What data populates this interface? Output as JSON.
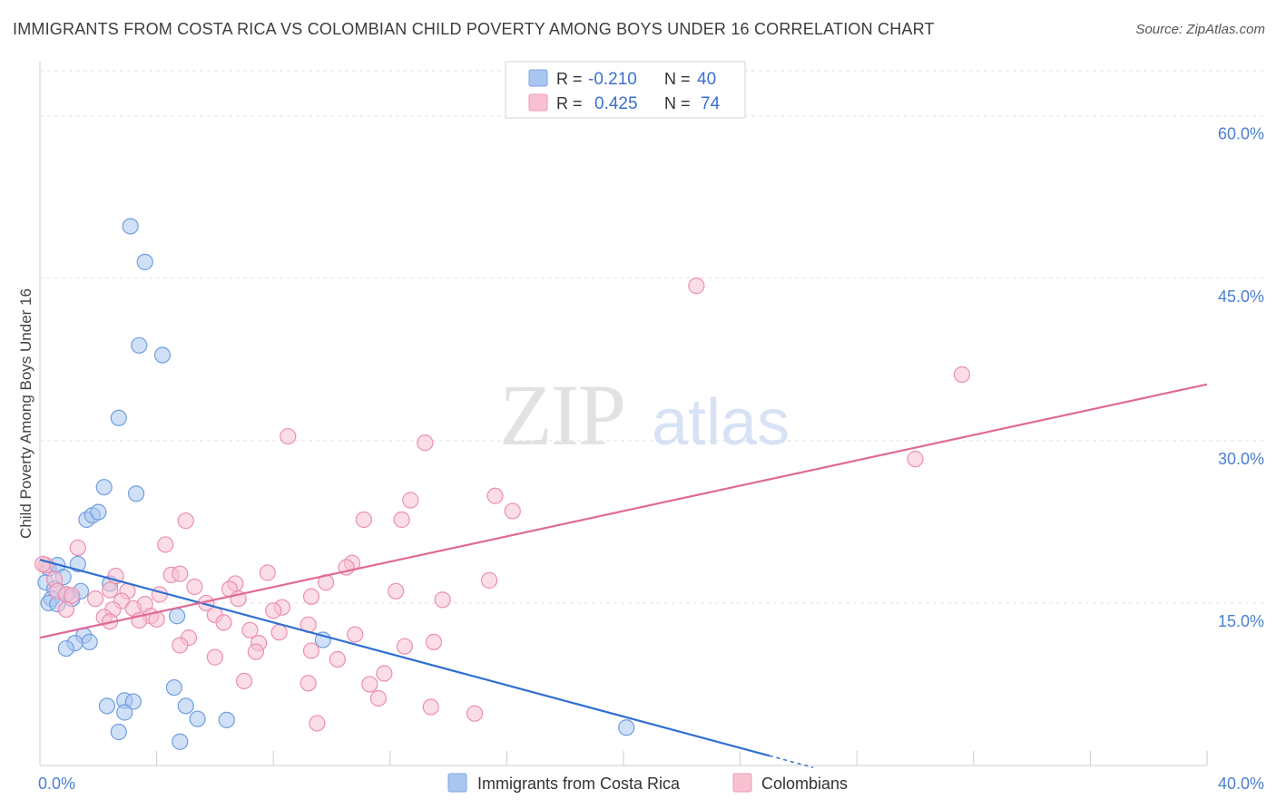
{
  "title": "IMMIGRANTS FROM COSTA RICA VS COLOMBIAN CHILD POVERTY AMONG BOYS UNDER 16 CORRELATION CHART",
  "source": "Source: ZipAtlas.com",
  "watermark": {
    "zip": "ZIP",
    "atlas": "atlas"
  },
  "legend": {
    "r_label": "R =",
    "n_label": "N =",
    "rows": [
      {
        "r": "-0.210",
        "n": "40",
        "color": "#a9c6f0",
        "stroke": "#7ea6e3"
      },
      {
        "r": "0.425",
        "n": "74",
        "color": "#f7c1d2",
        "stroke": "#ef9ab6"
      }
    ]
  },
  "chart_data": {
    "type": "scatter",
    "title": "IMMIGRANTS FROM COSTA RICA VS COLOMBIAN CHILD POVERTY AMONG BOYS UNDER 16 CORRELATION CHART",
    "xlabel": "",
    "ylabel": "Child Poverty Among Boys Under 16",
    "xlim": [
      0,
      40
    ],
    "ylim": [
      0,
      65
    ],
    "x_tick_labels": [
      {
        "value": 0,
        "label": "0.0%"
      },
      {
        "value": 40,
        "label": "40.0%"
      }
    ],
    "y_tick_labels": [
      {
        "value": 15,
        "label": "15.0%"
      },
      {
        "value": 30,
        "label": "30.0%"
      },
      {
        "value": 45,
        "label": "45.0%"
      },
      {
        "value": 60,
        "label": "60.0%"
      }
    ],
    "y_gridlines": [
      15,
      30,
      45,
      60
    ],
    "x_minor_ticks": [
      4,
      8,
      12,
      16,
      20,
      24,
      28,
      32,
      36,
      40
    ],
    "series": [
      {
        "name": "Immigrants from Costa Rica",
        "color": "#a9c6f0",
        "stroke": "#6f9ee0",
        "line_color": "#2f6fd0",
        "trend": {
          "x0": 0,
          "y0": 19.0,
          "x1": 25,
          "y1": 0.9,
          "dash_to_x": 26.5
        },
        "points": [
          [
            3.1,
            49.8
          ],
          [
            3.6,
            46.5
          ],
          [
            3.4,
            38.8
          ],
          [
            4.2,
            37.9
          ],
          [
            2.7,
            32.1
          ],
          [
            2.2,
            25.7
          ],
          [
            3.3,
            25.1
          ],
          [
            1.6,
            22.7
          ],
          [
            1.8,
            23.1
          ],
          [
            2.0,
            23.4
          ],
          [
            0.3,
            18.2
          ],
          [
            0.6,
            18.5
          ],
          [
            1.3,
            18.6
          ],
          [
            0.8,
            17.4
          ],
          [
            0.2,
            16.9
          ],
          [
            0.5,
            16.3
          ],
          [
            1.4,
            16.1
          ],
          [
            2.4,
            16.8
          ],
          [
            0.9,
            15.8
          ],
          [
            0.4,
            15.4
          ],
          [
            0.3,
            15.0
          ],
          [
            0.6,
            14.9
          ],
          [
            1.1,
            15.4
          ],
          [
            4.7,
            13.8
          ],
          [
            1.5,
            12.0
          ],
          [
            1.7,
            11.4
          ],
          [
            1.2,
            11.3
          ],
          [
            0.9,
            10.8
          ],
          [
            9.7,
            11.6
          ],
          [
            4.6,
            7.2
          ],
          [
            2.3,
            5.5
          ],
          [
            2.9,
            6.0
          ],
          [
            3.2,
            5.9
          ],
          [
            5.0,
            5.5
          ],
          [
            2.9,
            4.9
          ],
          [
            5.4,
            4.3
          ],
          [
            6.4,
            4.2
          ],
          [
            2.7,
            3.1
          ],
          [
            4.8,
            2.2
          ],
          [
            20.1,
            3.5
          ]
        ]
      },
      {
        "name": "Colombians",
        "color": "#f7c1d2",
        "stroke": "#ec8fb0",
        "line_color": "#e06a94",
        "trend": {
          "x0": 0,
          "y0": 11.8,
          "x1": 40,
          "y1": 35.2
        },
        "points": [
          [
            22.5,
            44.3
          ],
          [
            31.6,
            36.1
          ],
          [
            8.5,
            30.4
          ],
          [
            13.2,
            29.8
          ],
          [
            30.0,
            28.3
          ],
          [
            15.6,
            24.9
          ],
          [
            12.7,
            24.5
          ],
          [
            16.2,
            23.5
          ],
          [
            5.0,
            22.6
          ],
          [
            11.1,
            22.7
          ],
          [
            12.4,
            22.7
          ],
          [
            4.3,
            20.4
          ],
          [
            1.3,
            20.1
          ],
          [
            0.2,
            18.5
          ],
          [
            10.7,
            18.7
          ],
          [
            7.8,
            17.8
          ],
          [
            4.5,
            17.6
          ],
          [
            4.8,
            17.7
          ],
          [
            0.5,
            17.2
          ],
          [
            2.6,
            17.5
          ],
          [
            10.5,
            18.3
          ],
          [
            15.4,
            17.1
          ],
          [
            9.8,
            16.9
          ],
          [
            6.7,
            16.8
          ],
          [
            5.3,
            16.5
          ],
          [
            3.0,
            16.1
          ],
          [
            12.2,
            16.1
          ],
          [
            6.5,
            16.3
          ],
          [
            2.4,
            16.2
          ],
          [
            0.6,
            16.1
          ],
          [
            0.9,
            15.8
          ],
          [
            4.1,
            15.8
          ],
          [
            9.3,
            15.6
          ],
          [
            1.1,
            15.7
          ],
          [
            1.9,
            15.4
          ],
          [
            13.8,
            15.3
          ],
          [
            6.8,
            15.4
          ],
          [
            2.8,
            15.2
          ],
          [
            5.7,
            15.0
          ],
          [
            3.6,
            14.9
          ],
          [
            3.2,
            14.5
          ],
          [
            0.9,
            14.4
          ],
          [
            8.3,
            14.6
          ],
          [
            8.0,
            14.3
          ],
          [
            2.5,
            14.4
          ],
          [
            6.0,
            13.9
          ],
          [
            3.8,
            13.8
          ],
          [
            2.2,
            13.7
          ],
          [
            4.0,
            13.5
          ],
          [
            3.4,
            13.4
          ],
          [
            2.4,
            13.3
          ],
          [
            6.3,
            13.2
          ],
          [
            9.2,
            13.0
          ],
          [
            7.2,
            12.5
          ],
          [
            8.2,
            12.3
          ],
          [
            10.8,
            12.1
          ],
          [
            5.1,
            11.8
          ],
          [
            7.5,
            11.3
          ],
          [
            13.5,
            11.4
          ],
          [
            12.5,
            11.0
          ],
          [
            4.8,
            11.1
          ],
          [
            9.3,
            10.6
          ],
          [
            7.4,
            10.5
          ],
          [
            6.0,
            10.0
          ],
          [
            10.2,
            9.8
          ],
          [
            11.8,
            8.5
          ],
          [
            7.0,
            7.8
          ],
          [
            9.2,
            7.6
          ],
          [
            11.3,
            7.5
          ],
          [
            11.6,
            6.2
          ],
          [
            13.4,
            5.4
          ],
          [
            14.9,
            4.8
          ],
          [
            9.5,
            3.9
          ],
          [
            0.1,
            18.6
          ]
        ]
      }
    ]
  },
  "bottom_legend": [
    {
      "label": "Immigrants from Costa Rica",
      "color": "#a9c6f0",
      "stroke": "#7ea6e3"
    },
    {
      "label": "Colombians",
      "color": "#f7c1d2",
      "stroke": "#ef9ab6"
    }
  ]
}
